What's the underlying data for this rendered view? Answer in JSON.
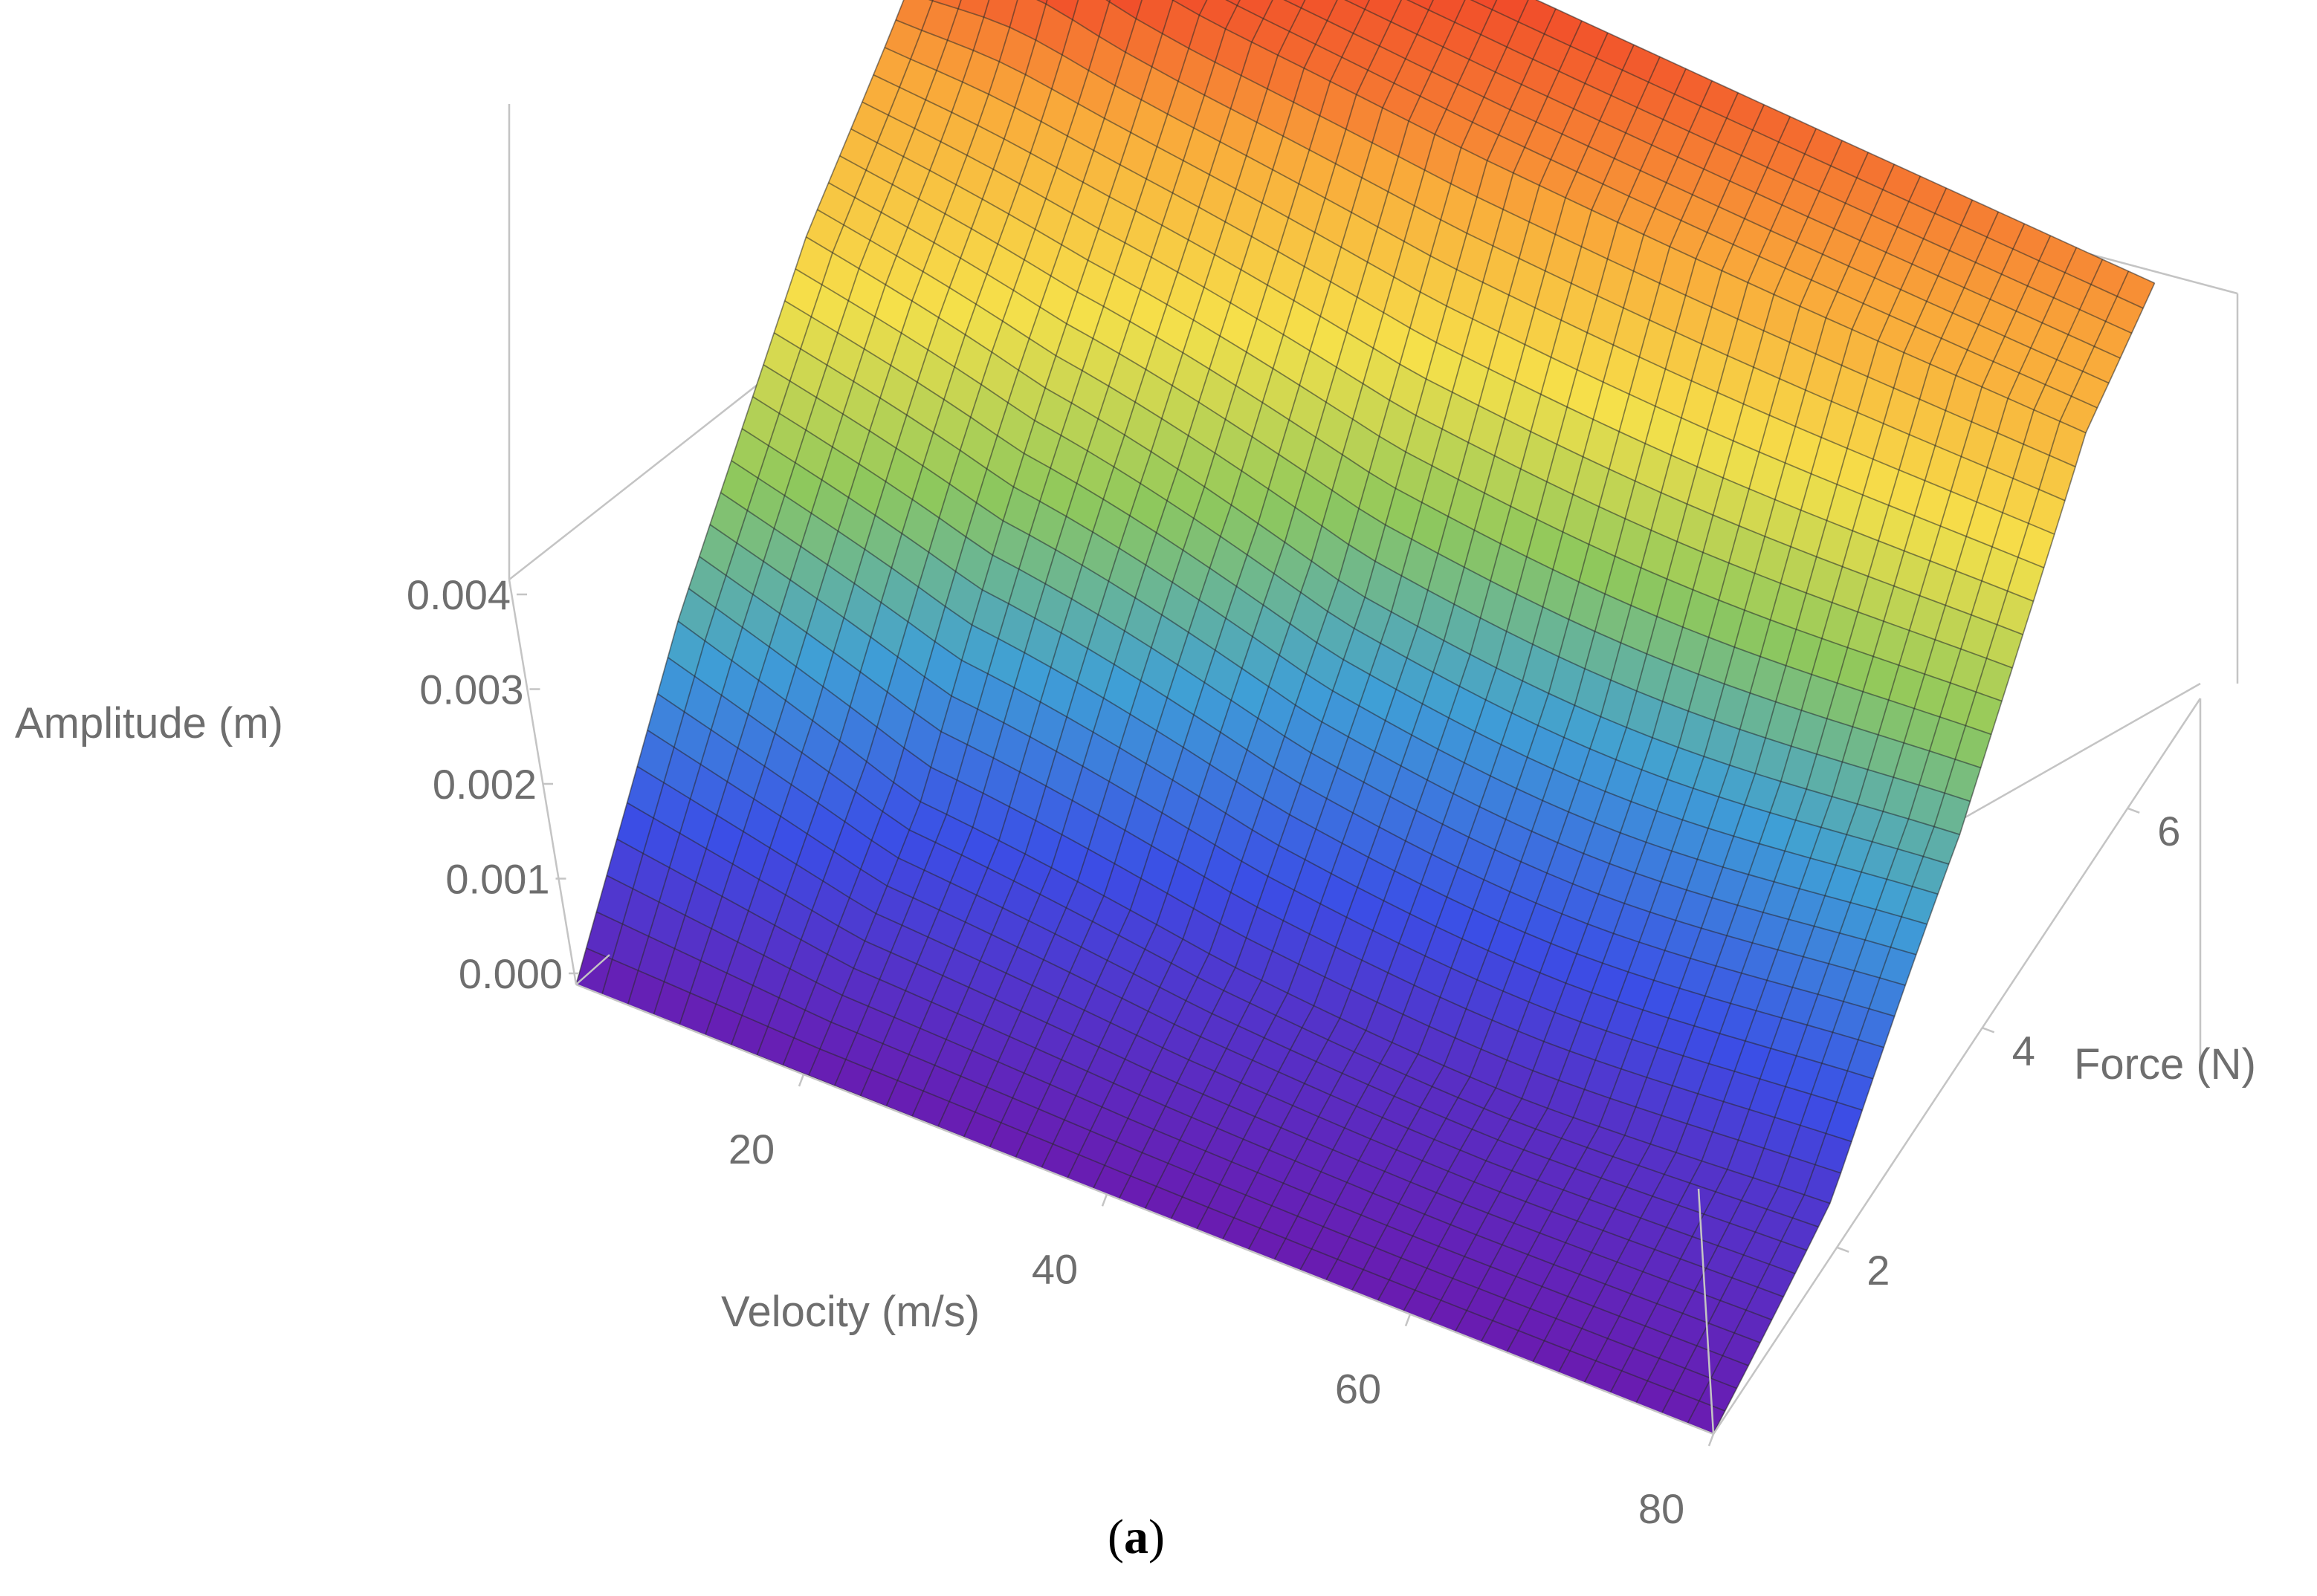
{
  "chart_data": {
    "type": "surface3d",
    "title": "",
    "caption": "(a)",
    "xlabel": "Velocity (m/s)",
    "ylabel": "Force (N)",
    "zlabel": "Amplitude (m)",
    "x_ticks": [
      "20",
      "40",
      "60",
      "80"
    ],
    "y_ticks": [
      "2",
      "4",
      "6"
    ],
    "z_ticks": [
      "0.000",
      "0.001",
      "0.002",
      "0.003",
      "0.004"
    ],
    "xlim": [
      5,
      80
    ],
    "ylim": [
      0.3,
      7
    ],
    "zlim": [
      0,
      0.004
    ],
    "colormap": "rainbow",
    "colormap_stops": [
      "#6a1bb0",
      "#3b4ee6",
      "#3f9fd6",
      "#8fc85c",
      "#f6e04a",
      "#f9a93a",
      "#ee2a24"
    ],
    "grid_lines": false,
    "surface_samples": {
      "velocity": [
        5,
        20,
        40,
        60,
        80
      ],
      "force": [
        0.3,
        2,
        4,
        6,
        7
      ],
      "amplitude_at_force": {
        "0.3": [
          0.0,
          0.0,
          0.0,
          0.0,
          0.0
        ],
        "2": [
          0.0018,
          0.0008,
          0.0005,
          0.0004,
          0.0004
        ],
        "4": [
          0.0034,
          0.0026,
          0.002,
          0.0019,
          0.0018
        ],
        "6": [
          0.0044,
          0.0044,
          0.0041,
          0.0039,
          0.0037
        ],
        "7": [
          0.0048,
          0.0047,
          0.0045,
          0.0043,
          0.0041
        ]
      }
    }
  }
}
